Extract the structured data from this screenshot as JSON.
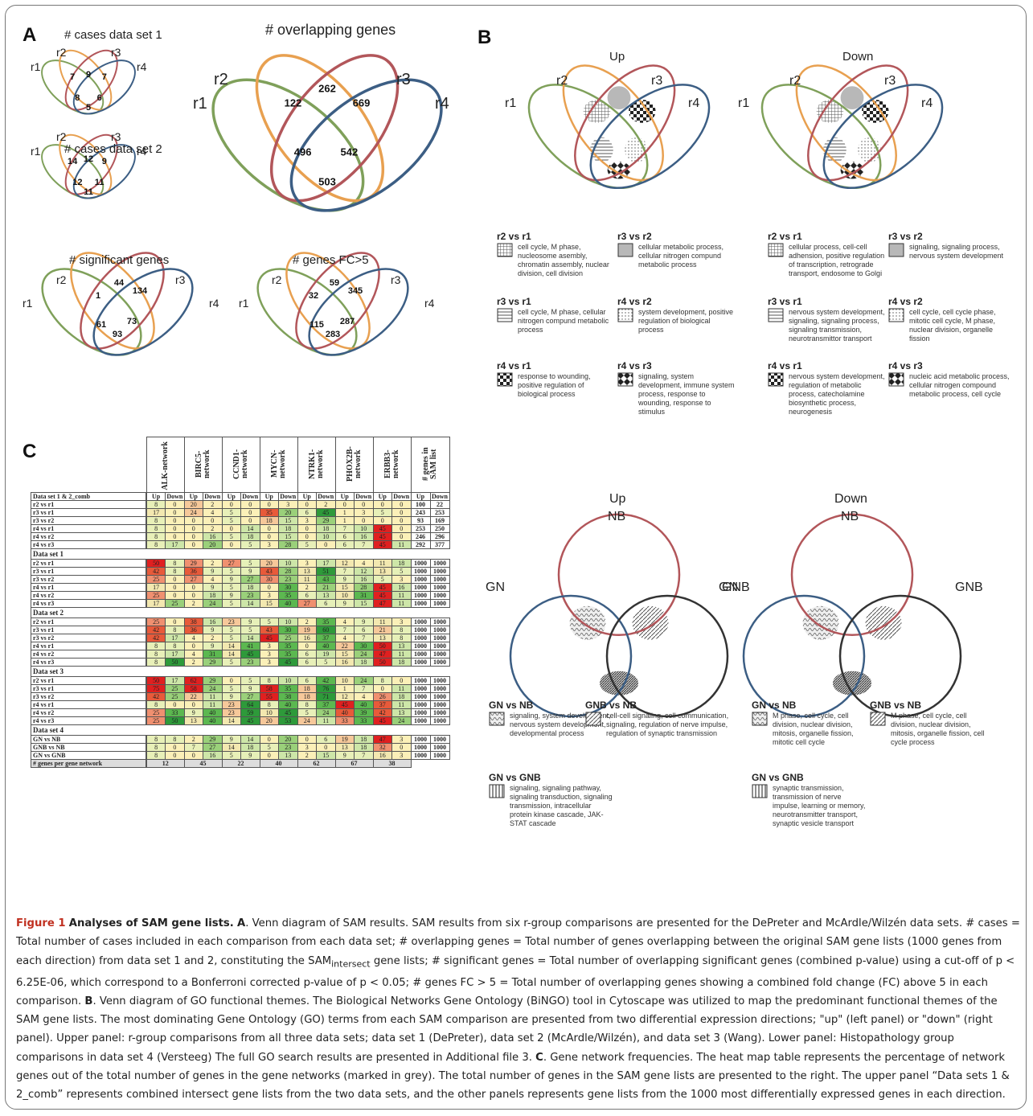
{
  "panel_labels": {
    "a": "A",
    "b": "B",
    "c": "C"
  },
  "venn_a": [
    {
      "title": "# cases data set 1",
      "labels": [
        "r1",
        "r2",
        "r3",
        "r4"
      ],
      "numbers": [
        "7",
        "9",
        "7",
        "8",
        "6",
        "5"
      ]
    },
    {
      "title": "# cases data set 2",
      "labels": [
        "r1",
        "r2",
        "r3",
        "r4"
      ],
      "numbers": [
        "14",
        "12",
        "9",
        "12",
        "11",
        "11"
      ]
    },
    {
      "title": "# overlapping genes",
      "labels": [
        "r1",
        "r2",
        "r3",
        "r4"
      ],
      "numbers": [
        "122",
        "262",
        "669",
        "496",
        "542",
        "503"
      ]
    },
    {
      "title": "# significant genes",
      "labels": [
        "r1",
        "r2",
        "r3",
        "r4"
      ],
      "numbers": [
        "1",
        "44",
        "134",
        "61",
        "73",
        "93"
      ]
    },
    {
      "title": "# genes FC>5",
      "labels": [
        "r1",
        "r2",
        "r3",
        "r4"
      ],
      "numbers": [
        "32",
        "59",
        "345",
        "115",
        "287",
        "283"
      ]
    }
  ],
  "venn_b": {
    "up_title": "Up",
    "down_title": "Down",
    "labels": [
      "r1",
      "r2",
      "r3",
      "r4"
    ],
    "up_legend": [
      {
        "title": "r2 vs r1",
        "desc": "cell cycle, M phase, nucleosome asembly, chromatin assembly, nuclear division, cell division"
      },
      {
        "title": "r3 vs r2",
        "desc": "cellular metabolic process, cellular nitrogen compund metabolic process"
      },
      {
        "title": "r3 vs r1",
        "desc": "cell cycle, M phase, cellular nitrogen compund metabolic process"
      },
      {
        "title": "r4 vs r2",
        "desc": "system development, positive regulation of biological process"
      },
      {
        "title": "r4 vs r1",
        "desc": "response to wounding, positive regulation of biological process"
      },
      {
        "title": "r4 vs r3",
        "desc": "signaling, system development, immune system process, response to wounding, response to stimulus"
      }
    ],
    "down_legend": [
      {
        "title": "r2 vs r1",
        "desc": "cellular process, cell-cell adhension, positive regulation of transcription, retrograde transport, endosome to Golgi"
      },
      {
        "title": "r3 vs r2",
        "desc": "signaling, signaling process, nervous system development"
      },
      {
        "title": "r3 vs r1",
        "desc": "nervous system development, signaling, signaling process, signaling transmission, neurotransmittor transport"
      },
      {
        "title": "r4 vs r2",
        "desc": "cell cycle, cell cycle phase, mitotic cell cycle, M phase, nuclear division, organelle fission"
      },
      {
        "title": "r4 vs r1",
        "desc": "nervous system development, regulation of metabolic process, catecholamine biosynthetic process, neurogenesis"
      },
      {
        "title": "r4 vs r3",
        "desc": "nucleic acid metabolic process, cellular nitrogen compound metabolic process, cell cycle"
      }
    ]
  },
  "venn_c3": {
    "up_title": "Up",
    "down_title": "Down",
    "labels": [
      "NB",
      "GN",
      "GNB"
    ],
    "up_legend": [
      {
        "title": "GN vs NB",
        "desc": "signaling, system development, nervous system development, developmental process"
      },
      {
        "title": "GNB vs NB",
        "desc": "cell-cell signaling, cell communication, signaling, regulation of nerve impulse, regulation of synaptic transmission"
      },
      {
        "title": "GN vs GNB",
        "desc": "signaling, signaling pathway, signaling transduction, signaling transmission, intracellular protein kinase cascade, JAK-STAT cascade"
      }
    ],
    "down_legend": [
      {
        "title": "GN vs NB",
        "desc": "M phase, cell cycle, cell division, nuclear division, mitosis, organelle fission, mitotic cell cycle"
      },
      {
        "title": "GNB vs NB",
        "desc": "M phase, cell cycle, cell division, nuclear division, mitosis, organelle fission, cell cycle process"
      },
      {
        "title": "GN vs GNB",
        "desc": "synaptic transmission, transmission of nerve impulse, learning or memory, neurotransmitter transport, synaptic vesicle transport"
      }
    ]
  },
  "chart_data": {
    "type": "heatmap",
    "networks": [
      "ALK-network",
      "BIRC5-network",
      "CCND1-network",
      "MYCN-network",
      "NTRK1-network",
      "PHOX2B-network",
      "ERBB3-network"
    ],
    "last_column": "# genes in SAM list",
    "subheaders": [
      "Up",
      "Down"
    ],
    "sections": [
      {
        "name": "Data set 1 & 2_comb",
        "rows": [
          {
            "label": "r2 vs r1",
            "values": [
              8,
              0,
              20,
              2,
              0,
              0,
              0,
              3,
              0,
              2,
              0,
              0,
              0,
              0,
              100,
              22
            ]
          },
          {
            "label": "r3 vs r1",
            "values": [
              17,
              0,
              24,
              4,
              5,
              0,
              35,
              20,
              6,
              45,
              1,
              3,
              5,
              0,
              243,
              253
            ]
          },
          {
            "label": "r3 vs r2",
            "values": [
              8,
              0,
              0,
              0,
              5,
              0,
              18,
              15,
              3,
              29,
              1,
              0,
              0,
              0,
              93,
              169
            ]
          },
          {
            "label": "r4 vs r1",
            "values": [
              8,
              0,
              0,
              2,
              0,
              14,
              0,
              18,
              0,
              18,
              7,
              10,
              45,
              0,
              253,
              250
            ]
          },
          {
            "label": "r4 vs r2",
            "values": [
              8,
              0,
              0,
              16,
              5,
              18,
              0,
              15,
              0,
              10,
              6,
              16,
              45,
              0,
              246,
              296
            ]
          },
          {
            "label": "r4 vs r3",
            "values": [
              8,
              17,
              0,
              20,
              0,
              5,
              3,
              28,
              5,
              0,
              6,
              7,
              45,
              11,
              292,
              377
            ]
          }
        ]
      },
      {
        "name": "Data set 1",
        "rows": [
          {
            "label": "r2 vs r1",
            "values": [
              50,
              8,
              29,
              2,
              27,
              5,
              20,
              10,
              3,
              17,
              12,
              4,
              11,
              18,
              1000,
              1000
            ]
          },
          {
            "label": "r3 vs r1",
            "values": [
              42,
              8,
              36,
              9,
              5,
              9,
              43,
              28,
              13,
              51,
              7,
              12,
              13,
              5,
              1000,
              1000
            ]
          },
          {
            "label": "r3 vs r2",
            "values": [
              25,
              0,
              27,
              4,
              9,
              27,
              30,
              23,
              11,
              43,
              9,
              16,
              5,
              3,
              1000,
              1000
            ]
          },
          {
            "label": "r4 vs r1",
            "values": [
              17,
              0,
              0,
              9,
              5,
              18,
              0,
              30,
              2,
              21,
              15,
              28,
              45,
              16,
              1000,
              1000
            ]
          },
          {
            "label": "r4 vs r2",
            "values": [
              25,
              0,
              0,
              18,
              9,
              23,
              3,
              35,
              6,
              13,
              10,
              31,
              45,
              11,
              1000,
              1000
            ]
          },
          {
            "label": "r4 vs r3",
            "values": [
              17,
              25,
              2,
              24,
              5,
              14,
              15,
              40,
              27,
              6,
              9,
              15,
              47,
              11,
              1000,
              1000
            ]
          }
        ]
      },
      {
        "name": "Data set 2",
        "rows": [
          {
            "label": "r2 vs r1",
            "values": [
              25,
              0,
              38,
              16,
              23,
              9,
              5,
              10,
              2,
              35,
              4,
              9,
              11,
              3,
              1000,
              1000
            ]
          },
          {
            "label": "r3 vs r1",
            "values": [
              42,
              8,
              36,
              9,
              5,
              5,
              43,
              30,
              19,
              60,
              7,
              6,
              21,
              8,
              1000,
              1000
            ]
          },
          {
            "label": "r3 vs r2",
            "values": [
              42,
              17,
              4,
              2,
              5,
              14,
              45,
              25,
              16,
              37,
              4,
              7,
              13,
              8,
              1000,
              1000
            ]
          },
          {
            "label": "r4 vs r1",
            "values": [
              8,
              8,
              0,
              9,
              14,
              41,
              3,
              35,
              0,
              40,
              22,
              30,
              50,
              13,
              1000,
              1000
            ]
          },
          {
            "label": "r4 vs r2",
            "values": [
              8,
              17,
              4,
              31,
              14,
              45,
              3,
              35,
              6,
              19,
              15,
              24,
              47,
              11,
              1000,
              1000
            ]
          },
          {
            "label": "r4 vs r3",
            "values": [
              8,
              50,
              2,
              29,
              5,
              23,
              3,
              45,
              6,
              5,
              16,
              18,
              50,
              18,
              1000,
              1000
            ]
          }
        ]
      },
      {
        "name": "Data set 3",
        "rows": [
          {
            "label": "r2 vs r1",
            "values": [
              50,
              17,
              62,
              29,
              0,
              5,
              8,
              10,
              6,
              42,
              10,
              24,
              8,
              0,
              1000,
              1000
            ]
          },
          {
            "label": "r3 vs r1",
            "values": [
              75,
              25,
              58,
              24,
              5,
              9,
              58,
              35,
              18,
              76,
              1,
              7,
              0,
              11,
              1000,
              1000
            ]
          },
          {
            "label": "r3 vs r2",
            "values": [
              42,
              25,
              22,
              11,
              9,
              27,
              55,
              38,
              18,
              71,
              12,
              4,
              26,
              18,
              1000,
              1000
            ]
          },
          {
            "label": "r4 vs r1",
            "values": [
              8,
              0,
              0,
              11,
              23,
              64,
              8,
              40,
              8,
              37,
              45,
              40,
              37,
              11,
              1000,
              1000
            ]
          },
          {
            "label": "r4 vs r2",
            "values": [
              25,
              33,
              9,
              40,
              23,
              59,
              10,
              45,
              5,
              24,
              40,
              39,
              42,
              13,
              1000,
              1000
            ]
          },
          {
            "label": "r4 vs r3",
            "values": [
              25,
              50,
              13,
              40,
              14,
              45,
              20,
              53,
              24,
              11,
              33,
              33,
              45,
              24,
              1000,
              1000
            ]
          }
        ]
      },
      {
        "name": "Data set 4",
        "rows": [
          {
            "label": "GN vs NB",
            "values": [
              8,
              8,
              2,
              29,
              9,
              14,
              0,
              20,
              0,
              6,
              19,
              18,
              47,
              3,
              1000,
              1000
            ]
          },
          {
            "label": "GNB vs NB",
            "values": [
              8,
              0,
              7,
              27,
              14,
              18,
              5,
              23,
              3,
              0,
              13,
              18,
              32,
              0,
              1000,
              1000
            ]
          },
          {
            "label": "GN vs GNB",
            "values": [
              8,
              0,
              0,
              16,
              5,
              9,
              0,
              13,
              2,
              15,
              9,
              7,
              16,
              3,
              1000,
              1000
            ]
          }
        ]
      }
    ],
    "footer_label": "# genes per gene network",
    "footer_values": [
      12,
      45,
      22,
      40,
      62,
      67,
      38
    ]
  },
  "caption": {
    "fig_label": "Figure 1",
    "fig_title": "Analyses of SAM gene lists.",
    "seg1": "A",
    "seg2": ". Venn diagram of SAM results. SAM results from six r-group comparisons are presented for the DePreter and McArdle/Wilzén data sets. # cases = Total number of cases included in each comparison from each data set; # overlapping genes = Total number of genes overlapping between the original SAM gene lists (1000 genes from each direction) from data set 1 and 2, constituting the SAM",
    "sub": "intersect",
    "seg3": " gene lists; # significant genes = Total number of overlapping significant genes (combined p-value) using a cut-off of p < 6.25E-06, which correspond to a Bonferroni corrected p-value of p < 0.05; # genes FC > 5 = Total number of overlapping genes showing a combined fold change (FC) above 5 in each comparison. ",
    "seg4": "B",
    "seg5": ". Venn diagram of GO functional themes. The Biological Networks Gene Ontology (BiNGO) tool  in Cytoscape was utilized to map the predominant functional themes of the SAM gene lists. The most dominating Gene Ontology (GO) terms from each SAM comparison are presented from two differential expression directions; \"up\" (left panel) or \"down\" (right panel). Upper panel: r-group comparisons from all three data sets; data set 1 (DePreter), data set 2 (McArdle/Wilzén), and data set 3 (Wang). Lower panel: Histopathology group comparisons in data set 4 (Versteeg) The full GO search results are presented in Additional file 3. ",
    "seg6": "C",
    "seg7": ". Gene network frequencies. The heat map table represents the percentage of network genes out of the total number of genes in the gene networks (marked in grey). The total number of genes in the SAM gene lists are presented to the right. The upper panel “Data sets 1 & 2_comb” represents combined intersect gene lists from the two data sets, and the other panels represents gene lists from the 1000 most differentially expressed genes in each direction."
  }
}
